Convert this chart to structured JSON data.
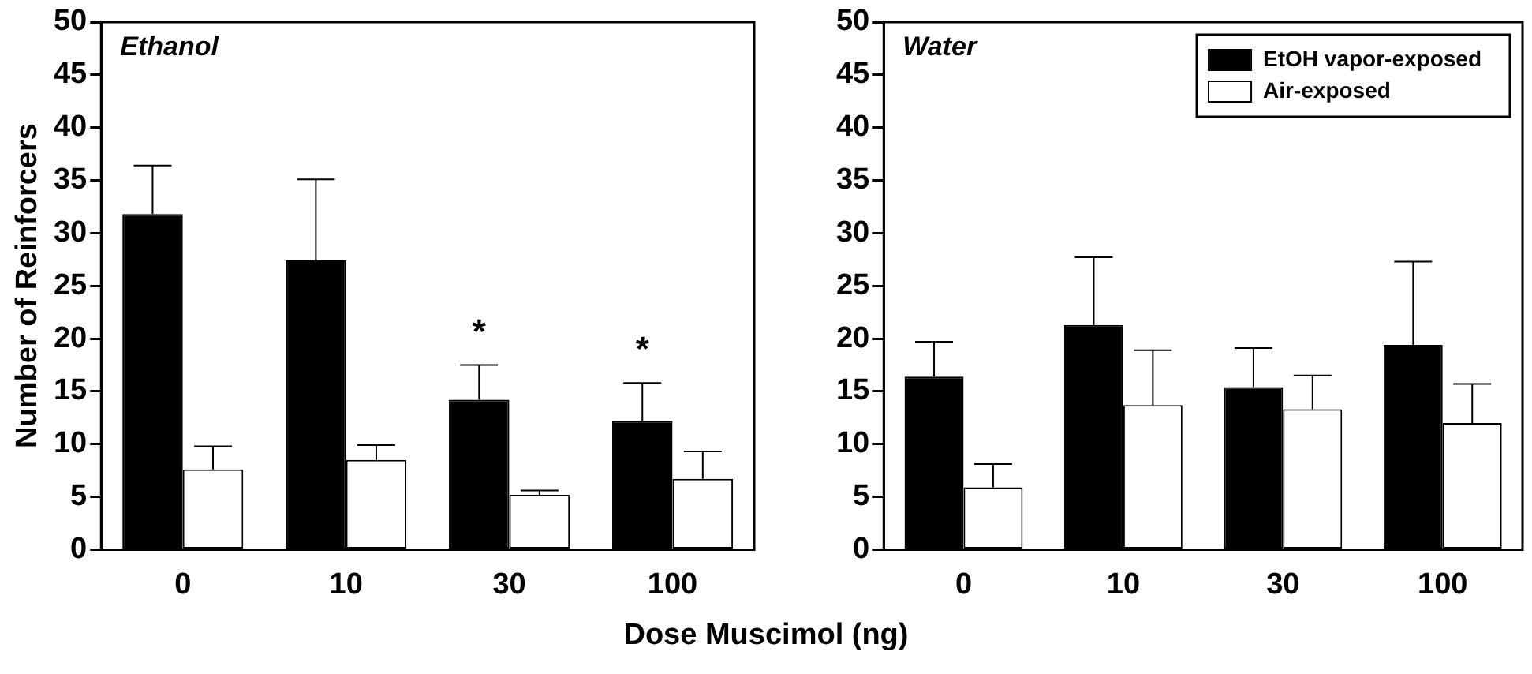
{
  "chart_data": [
    {
      "type": "bar",
      "title": "Ethanol",
      "ylabel": "Number of Reinforcers",
      "xlabel": "Dose Muscimol (ng)",
      "categories": [
        "0",
        "10",
        "30",
        "100"
      ],
      "series": [
        {
          "color": "#000000",
          "values": [
            31.8,
            27.4,
            14.2,
            12.2
          ],
          "errors": [
            [
              31.8,
              36.4
            ],
            [
              27.4,
              35.1
            ],
            [
              14.2,
              17.5
            ],
            [
              12.2,
              15.8
            ]
          ]
        },
        {
          "color": "#ffffff",
          "values": [
            7.6,
            8.5,
            5.2,
            6.7
          ],
          "errors": [
            [
              7.6,
              9.8
            ],
            [
              8.5,
              9.9
            ],
            [
              5.2,
              5.6
            ],
            [
              6.7,
              9.3
            ]
          ]
        }
      ],
      "annotations": [
        "*",
        "*"
      ],
      "ylim": [
        0,
        50
      ],
      "yticks": [
        0,
        5,
        10,
        15,
        20,
        25,
        30,
        35,
        40,
        45,
        50
      ],
      "grid": false,
      "legend": false
    },
    {
      "type": "bar",
      "title": "Water",
      "categories": [
        "0",
        "10",
        "30",
        "100"
      ],
      "series": [
        {
          "name": "EtOH vapor-exposed",
          "color": "#000000",
          "values": [
            16.4,
            21.3,
            15.4,
            19.4
          ],
          "errors": [
            [
              16.4,
              19.7
            ],
            [
              21.3,
              27.7
            ],
            [
              15.4,
              19.1
            ],
            [
              19.4,
              27.3
            ]
          ]
        },
        {
          "name": "Air-exposed",
          "color": "#ffffff",
          "values": [
            5.9,
            13.7,
            13.3,
            12.0
          ],
          "errors": [
            [
              5.9,
              8.1
            ],
            [
              13.7,
              18.9
            ],
            [
              13.3,
              16.5
            ],
            [
              12.0,
              15.7
            ]
          ]
        }
      ],
      "ylim": [
        0,
        50
      ],
      "yticks": [
        0,
        5,
        10,
        15,
        20,
        25,
        30,
        35,
        40,
        45,
        50
      ],
      "grid": false,
      "legend": "top right"
    }
  ]
}
